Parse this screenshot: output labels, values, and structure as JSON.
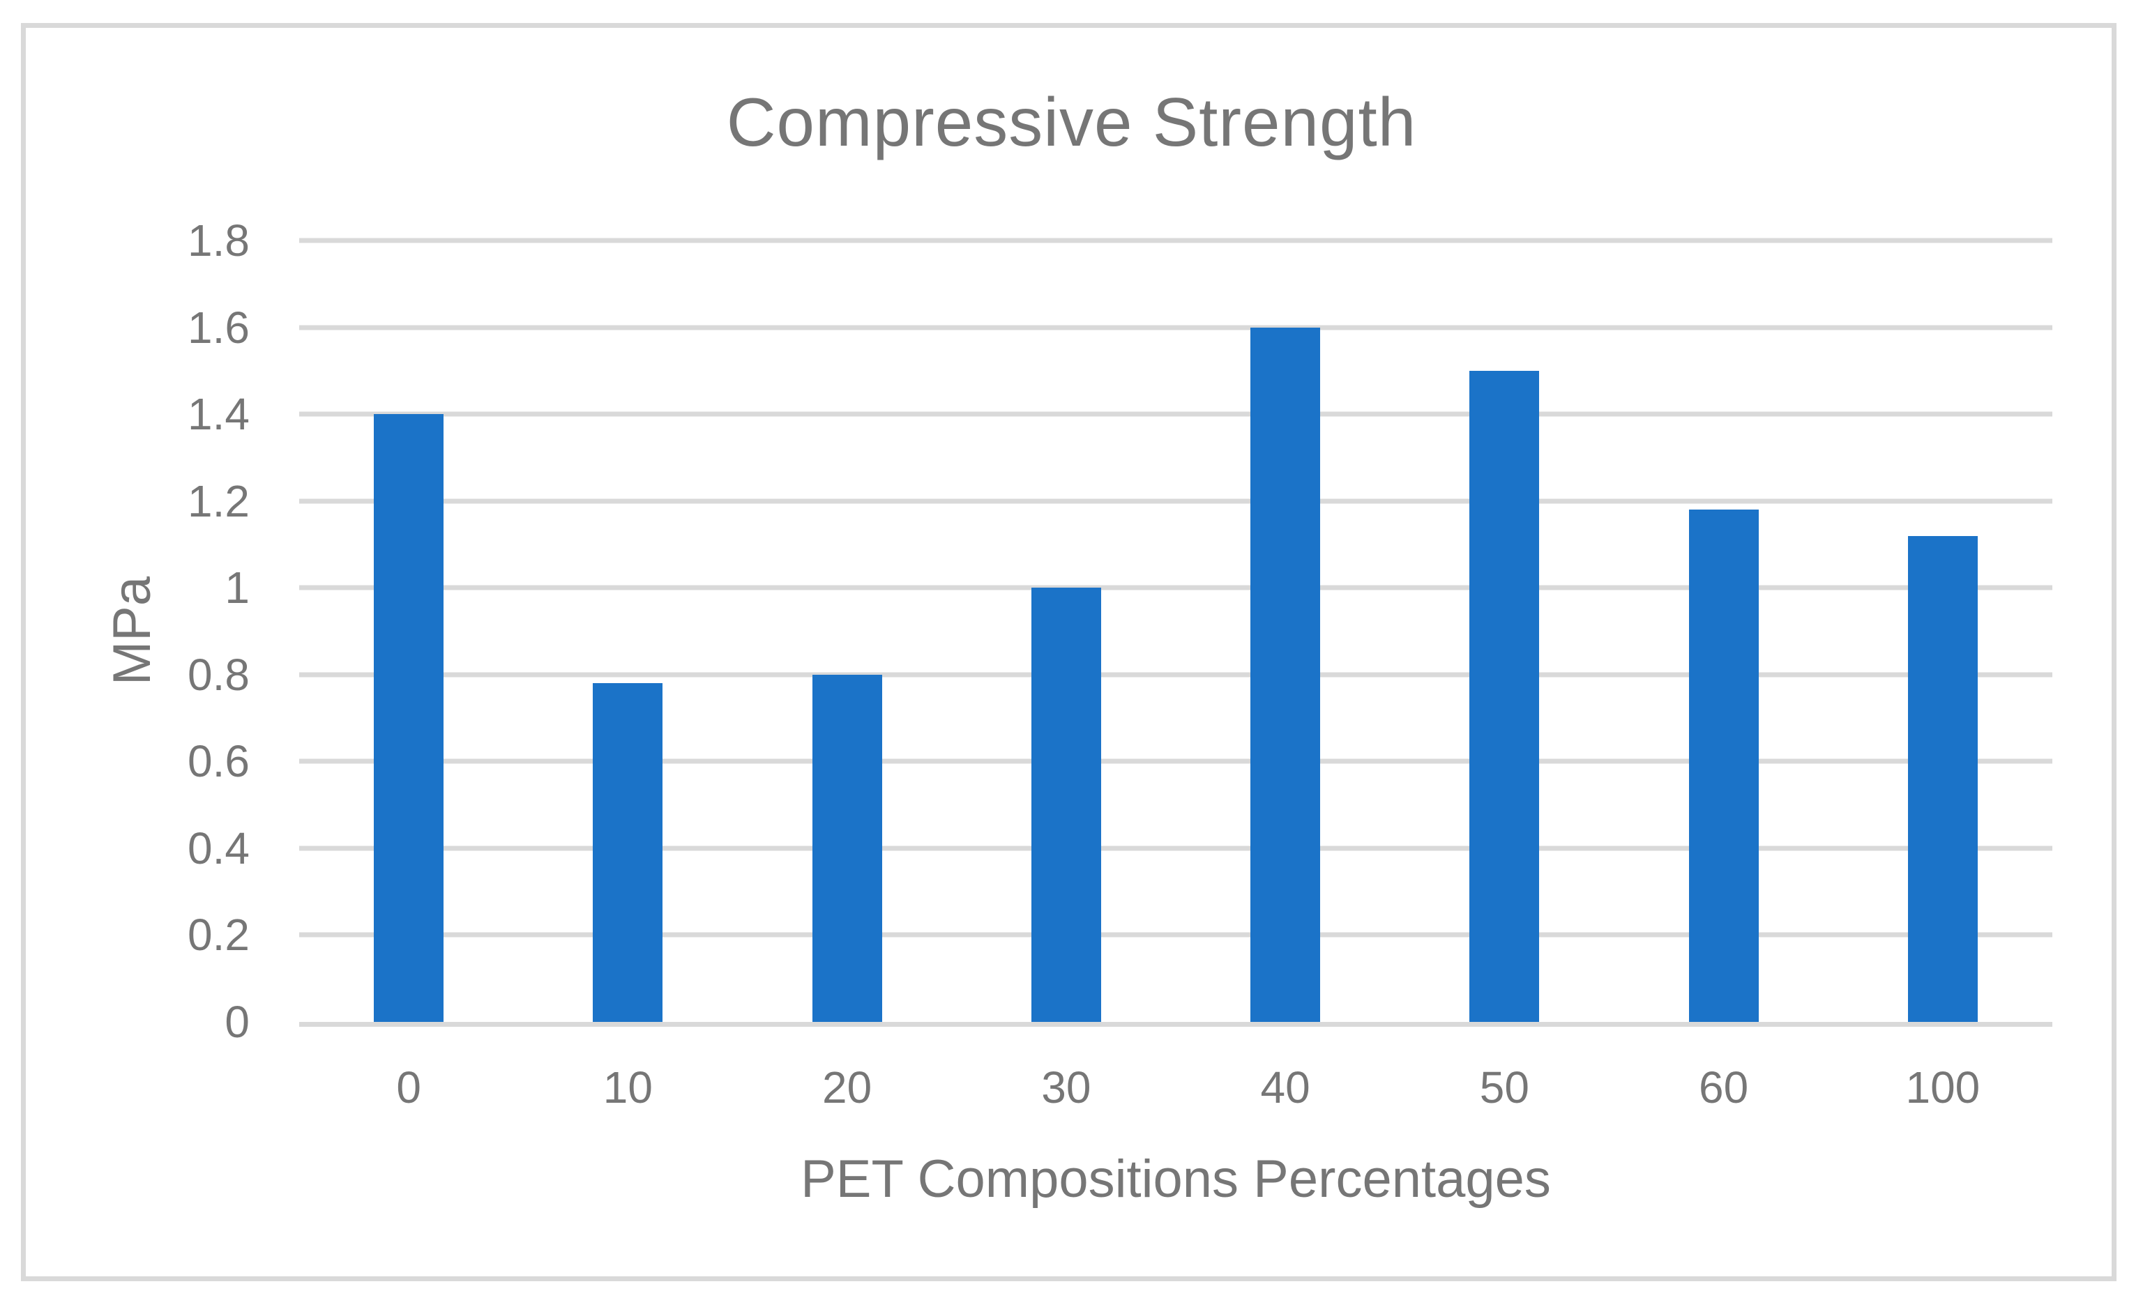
{
  "chart_data": {
    "type": "bar",
    "title": "Compressive Strength",
    "categories": [
      "0",
      "10",
      "20",
      "30",
      "40",
      "50",
      "60",
      "100"
    ],
    "values": [
      1.4,
      0.78,
      0.8,
      1.0,
      1.6,
      1.5,
      1.18,
      1.12
    ],
    "xlabel": "PET Compositions Percentages",
    "ylabel": "MPa",
    "ylim": [
      0,
      1.8
    ],
    "yticks": [
      {
        "label": "1.8",
        "value": 1.8
      },
      {
        "label": "1.6",
        "value": 1.6
      },
      {
        "label": "1.4",
        "value": 1.4
      },
      {
        "label": "1.2",
        "value": 1.2
      },
      {
        "label": "1",
        "value": 1.0
      },
      {
        "label": "0.8",
        "value": 0.8
      },
      {
        "label": "0.6",
        "value": 0.6
      },
      {
        "label": "0.4",
        "value": 0.4
      },
      {
        "label": "0.2",
        "value": 0.2
      },
      {
        "label": "0",
        "value": 0.0
      }
    ],
    "grid": true,
    "legend_position": "none",
    "colors": {
      "bar": "#1B73C8",
      "gridline": "#D9D9D9",
      "axis_line": "#D9D9D9",
      "frame_border": "#D9D9D9",
      "text": "#767676",
      "background": "#FFFFFF"
    }
  }
}
